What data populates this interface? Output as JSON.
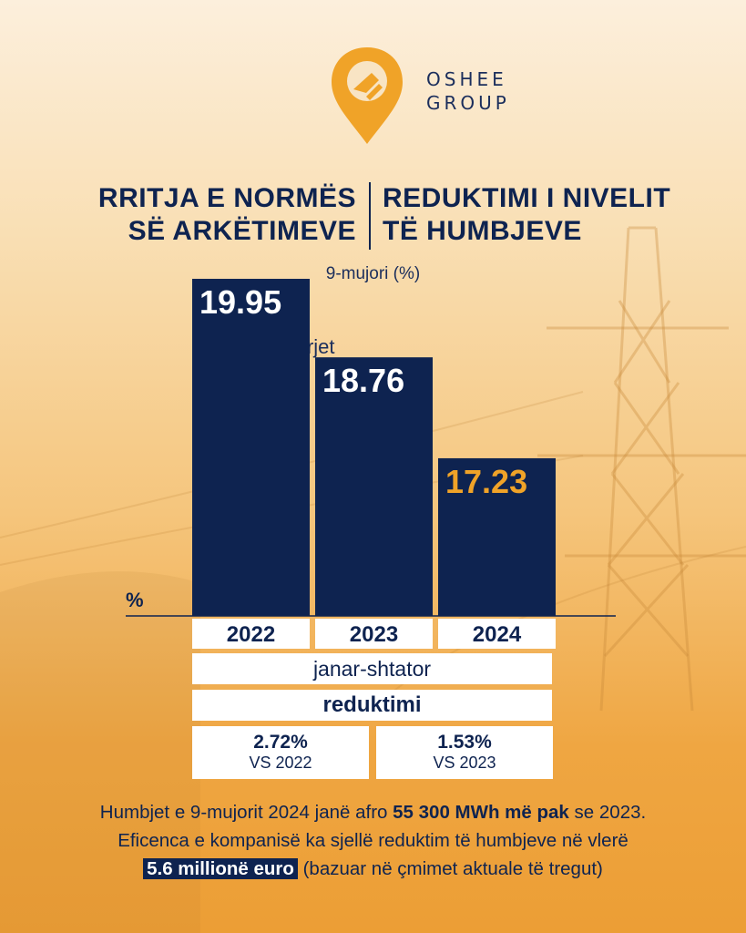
{
  "brand": {
    "name_line1": "OSHEE",
    "name_line2": "GROUP"
  },
  "heading": {
    "left_line1": "RRITJA E NORMËS",
    "left_line2": "SË ARKËTIMEVE",
    "right_line1": "REDUKTIMI I NIVELIT",
    "right_line2": "TË HUMBJEVE"
  },
  "subtitle": "9-mujori (%)",
  "chart_data": {
    "type": "bar",
    "title": "Humbjet në rrjet",
    "ylabel": "%",
    "categories": [
      "2022",
      "2023",
      "2024"
    ],
    "values": [
      19.95,
      18.76,
      17.23
    ],
    "value_labels": [
      "19.95",
      "18.76",
      "17.23"
    ],
    "ylim": [
      0,
      20
    ],
    "grid": false,
    "colors": {
      "bar": "#0e2350",
      "label": "#ffffff",
      "highlight_label": "#f0a328"
    }
  },
  "period_label": "janar-shtator",
  "reduction": {
    "label": "reduktimi",
    "items": [
      {
        "value": "2.72%",
        "reference": "VS 2022"
      },
      {
        "value": "1.53%",
        "reference": "VS 2023"
      }
    ]
  },
  "footer": {
    "line1_prefix": "Humbjet e 9-mujorit 2024 janë afro ",
    "line1_bold": "55 300 MWh më pak",
    "line1_suffix": " se 2023.",
    "line2": "Eficenca e kompanisë ka sjellë reduktim të humbjeve në vlerë",
    "line3_highlight": "5.6 millionë euro",
    "line3_suffix": " (bazuar në çmimet aktuale të tregut)"
  }
}
